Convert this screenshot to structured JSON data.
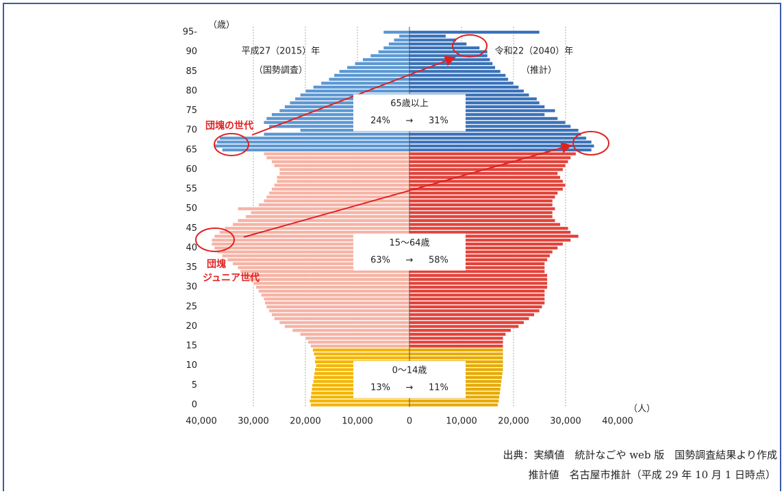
{
  "chart_data": {
    "type": "pyramid",
    "y_label": "（歳）",
    "x_label": "（人）",
    "y": [
      0,
      1,
      2,
      3,
      4,
      5,
      6,
      7,
      8,
      9,
      10,
      11,
      12,
      13,
      14,
      15,
      16,
      17,
      18,
      19,
      20,
      21,
      22,
      23,
      24,
      25,
      26,
      27,
      28,
      29,
      30,
      31,
      32,
      33,
      34,
      35,
      36,
      37,
      38,
      39,
      40,
      41,
      42,
      43,
      44,
      45,
      46,
      47,
      48,
      49,
      50,
      51,
      52,
      53,
      54,
      55,
      56,
      57,
      58,
      59,
      60,
      61,
      62,
      63,
      64,
      65,
      66,
      67,
      68,
      69,
      70,
      71,
      72,
      73,
      74,
      75,
      76,
      77,
      78,
      79,
      80,
      81,
      82,
      83,
      84,
      85,
      86,
      87,
      88,
      89,
      90,
      91,
      92,
      93,
      94,
      95
    ],
    "series": [
      {
        "name": "平成27（2015）年",
        "note": "（国勢調査）",
        "side": "left",
        "values": [
          19000,
          19200,
          19000,
          18900,
          18800,
          18700,
          18500,
          18400,
          18300,
          18200,
          18000,
          18200,
          18100,
          18400,
          18600,
          19000,
          19500,
          20000,
          21000,
          22500,
          24000,
          25000,
          26000,
          26500,
          27000,
          27500,
          27800,
          28000,
          28500,
          29000,
          29500,
          30000,
          31000,
          31500,
          32500,
          33000,
          34000,
          35000,
          36000,
          37000,
          37500,
          38000,
          38000,
          37500,
          36500,
          35500,
          34000,
          33000,
          31500,
          30500,
          33000,
          29000,
          28000,
          27500,
          27000,
          26500,
          26000,
          25500,
          25500,
          25000,
          25000,
          26000,
          26500,
          27500,
          28000,
          36000,
          37500,
          37000,
          36500,
          28000,
          21000,
          27000,
          28000,
          27500,
          26500,
          25000,
          24000,
          23000,
          22000,
          21000,
          20000,
          18500,
          17000,
          15500,
          14500,
          13500,
          12000,
          10500,
          9000,
          7500,
          6000,
          5000,
          4000,
          3000,
          2000,
          5000
        ]
      },
      {
        "name": "令和22（2040）年",
        "note": "（推計）",
        "side": "right",
        "values": [
          17000,
          17200,
          17300,
          17400,
          17500,
          17600,
          17700,
          17800,
          17900,
          18000,
          18000,
          18000,
          18000,
          18000,
          18000,
          18000,
          18000,
          18000,
          18500,
          19500,
          21000,
          22000,
          23000,
          24000,
          25000,
          25500,
          26000,
          26000,
          26000,
          26000,
          26500,
          26500,
          26500,
          26500,
          26000,
          26000,
          26000,
          26500,
          27000,
          27500,
          28500,
          29500,
          31000,
          32500,
          31000,
          30500,
          29000,
          28000,
          27500,
          27500,
          28000,
          27500,
          27500,
          28000,
          28500,
          29500,
          30000,
          29500,
          29000,
          28500,
          29500,
          30000,
          30500,
          31000,
          32000,
          35000,
          35500,
          35000,
          34000,
          33000,
          32500,
          31000,
          30000,
          28500,
          26000,
          28000,
          26000,
          25000,
          24500,
          23000,
          22000,
          21000,
          20000,
          19000,
          18500,
          17500,
          16500,
          16000,
          15500,
          15000,
          15000,
          13500,
          11000,
          9000,
          7000,
          25000
        ]
      }
    ],
    "groups": [
      {
        "label": "0～14歳",
        "range": [
          0,
          14
        ],
        "values": [
          13,
          11
        ],
        "value_labels": [
          "13%",
          "11%"
        ],
        "colors": [
          "#f5b400",
          "#e8a900"
        ]
      },
      {
        "label": "15～64歳",
        "range": [
          15,
          64
        ],
        "values": [
          63,
          58
        ],
        "value_labels": [
          "63%",
          "58%"
        ],
        "colors": [
          "#f6b3a5",
          "#e2433a"
        ]
      },
      {
        "label": "65歳以上",
        "range": [
          65,
          95
        ],
        "values": [
          24,
          31
        ],
        "value_labels": [
          "24%",
          "31%"
        ],
        "colors": [
          "#5b97d3",
          "#3a72b9"
        ]
      }
    ],
    "arrow": "→",
    "annotations": [
      "団塊の世代",
      "団塊",
      "ジュニア世代"
    ],
    "xlim": [
      -40000,
      40000
    ],
    "ylim": [
      0,
      95
    ],
    "xticks": [
      {
        "value": -40000,
        "label": "40,000"
      },
      {
        "value": -30000,
        "label": "30,000"
      },
      {
        "value": -20000,
        "label": "20,000"
      },
      {
        "value": -10000,
        "label": "10,000"
      },
      0,
      {
        "value": 10000,
        "label": "10,000"
      },
      {
        "value": 20000,
        "label": "20,000"
      },
      {
        "value": 30000,
        "label": "30,000"
      },
      {
        "value": 40000,
        "label": "40,000"
      }
    ],
    "yticks": [
      0,
      5,
      10,
      15,
      20,
      25,
      30,
      35,
      40,
      45,
      50,
      55,
      60,
      65,
      70,
      75,
      80,
      85,
      90,
      {
        "value": 95,
        "label": "95-"
      }
    ],
    "grid": true
  },
  "source": [
    "出典：実績値　統計なごや web 版　国勢調査結果より作成",
    "推計値　名古屋市推計（平成 29 年 10 月 1 日時点）"
  ]
}
